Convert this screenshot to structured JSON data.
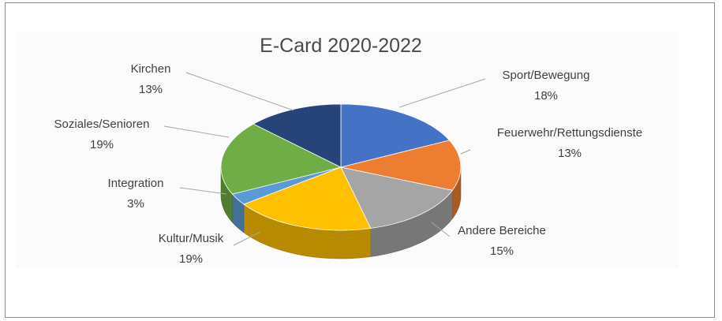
{
  "chart_data": {
    "type": "pie",
    "title": "E-Card 2020-2022",
    "slices": [
      {
        "label": "Sport/Bewegung",
        "value": 18,
        "display": "18%",
        "color": "#4472C4"
      },
      {
        "label": "Feuerwehr/Rettungsdienste",
        "value": 13,
        "display": "13%",
        "color": "#ED7D31"
      },
      {
        "label": "Andere Bereiche",
        "value": 15,
        "display": "15%",
        "color": "#A5A5A5"
      },
      {
        "label": "Kultur/Musik",
        "value": 19,
        "display": "19%",
        "color": "#FFC000"
      },
      {
        "label": "Integration",
        "value": 3,
        "display": "3%",
        "color": "#5B9BD5"
      },
      {
        "label": "Soziales/Senioren",
        "value": 19,
        "display": "19%",
        "color": "#70AD47"
      },
      {
        "label": "Kirchen",
        "value": 13,
        "display": "13%",
        "color": "#264478"
      }
    ],
    "legend": "none",
    "style": "3d-pie"
  }
}
